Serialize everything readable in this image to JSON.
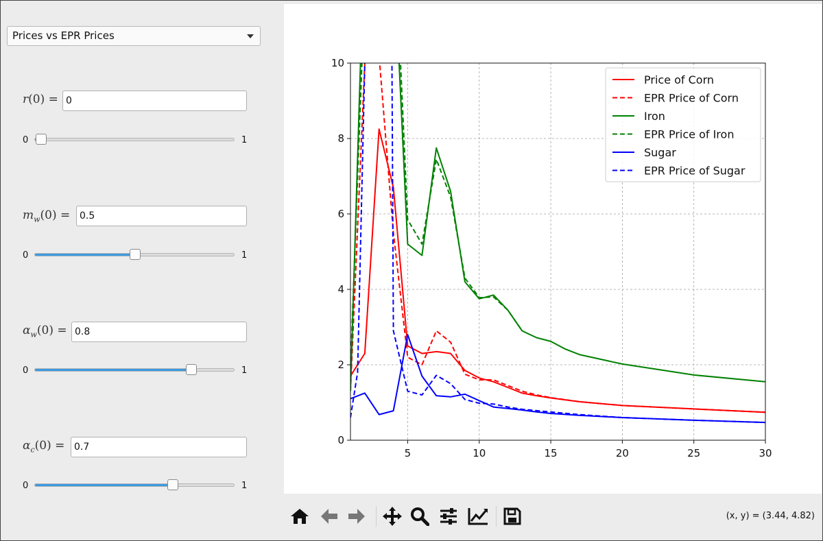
{
  "dropdown": {
    "selected": "Prices vs EPR Prices"
  },
  "params": [
    {
      "sym": "r",
      "sub": "",
      "value": "0",
      "slider_min": "0",
      "slider_max": "1",
      "fraction": 0.0
    },
    {
      "sym": "m",
      "sub": "w",
      "value": "0.5",
      "slider_min": "0",
      "slider_max": "1",
      "fraction": 0.5
    },
    {
      "sym": "α",
      "sub": "w",
      "value": "0.8",
      "slider_min": "0",
      "slider_max": "1",
      "fraction": 0.8
    },
    {
      "sym": "α",
      "sub": "c",
      "value": "0.7",
      "slider_min": "0",
      "slider_max": "1",
      "fraction": 0.7
    }
  ],
  "param_suffix": "(0) =",
  "toolbar": {
    "buttons": [
      "home-icon",
      "back-icon",
      "forward-icon",
      "pan-icon",
      "zoom-icon",
      "configure-subplots-icon",
      "edit-axis-icon",
      "save-icon"
    ]
  },
  "status": {
    "coords": "(x, y) = (3.44, 4.82)"
  },
  "chart_data": {
    "type": "line",
    "xlim": [
      1,
      30
    ],
    "ylim": [
      0,
      10
    ],
    "xticks": [
      5,
      10,
      15,
      20,
      25,
      30
    ],
    "yticks": [
      0,
      2,
      4,
      6,
      8,
      10
    ],
    "grid": true,
    "legend_position": "top-right",
    "series": [
      {
        "name": "Price of Corn",
        "color": "#ff0000",
        "dash": false,
        "x": [
          1,
          2,
          3,
          4,
          5,
          6,
          7,
          8,
          9,
          10,
          11,
          12,
          13,
          14,
          15,
          17,
          20,
          25,
          30
        ],
        "y": [
          1.7,
          2.3,
          8.25,
          6.7,
          2.5,
          2.3,
          2.35,
          2.3,
          1.85,
          1.65,
          1.55,
          1.4,
          1.25,
          1.18,
          1.12,
          1.02,
          0.92,
          0.83,
          0.74
        ]
      },
      {
        "name": "EPR Price of Corn",
        "color": "#ff0000",
        "dash": true,
        "x": [
          1,
          2,
          3,
          4,
          5,
          6,
          7,
          8,
          9,
          10,
          11,
          12,
          13,
          14,
          15,
          17,
          20,
          25,
          30
        ],
        "y": [
          1.3,
          10.0,
          10.2,
          5.5,
          2.2,
          2.0,
          2.9,
          2.6,
          1.75,
          1.6,
          1.6,
          1.45,
          1.3,
          1.2,
          1.13,
          1.02,
          0.92,
          0.83,
          0.74
        ]
      },
      {
        "name": "Iron",
        "color": "#008000",
        "dash": false,
        "x": [
          1,
          1.7,
          2,
          3,
          4,
          4.4,
          5,
          6,
          7,
          8,
          9,
          10,
          11,
          12,
          13,
          14,
          15,
          16,
          17,
          20,
          25,
          30
        ],
        "y": [
          1.3,
          10.0,
          10.2,
          10.2,
          10.2,
          10.0,
          5.2,
          4.9,
          7.75,
          6.6,
          4.2,
          3.75,
          3.85,
          3.45,
          2.9,
          2.72,
          2.62,
          2.42,
          2.27,
          2.02,
          1.73,
          1.55
        ]
      },
      {
        "name": "EPR Price of Iron",
        "color": "#008000",
        "dash": true,
        "x": [
          1,
          1.8,
          2,
          3,
          4,
          4.5,
          5,
          6,
          7,
          8,
          9,
          10,
          11,
          12,
          13
        ],
        "y": [
          1.9,
          10.0,
          10.2,
          10.2,
          10.2,
          10.0,
          5.85,
          5.2,
          7.45,
          6.45,
          4.3,
          3.78,
          3.8,
          3.45,
          2.9
        ]
      },
      {
        "name": "Sugar",
        "color": "#0000ff",
        "dash": false,
        "x": [
          1,
          2,
          3,
          4,
          5,
          6,
          7,
          8,
          9,
          10,
          11,
          12,
          13,
          14,
          15,
          17,
          20,
          25,
          30
        ],
        "y": [
          1.1,
          1.25,
          0.68,
          0.78,
          2.8,
          1.7,
          1.18,
          1.15,
          1.22,
          1.05,
          0.88,
          0.84,
          0.8,
          0.75,
          0.71,
          0.66,
          0.6,
          0.53,
          0.47
        ]
      },
      {
        "name": "EPR Price of Sugar",
        "color": "#0000ff",
        "dash": true,
        "x": [
          1,
          1.5,
          2,
          3,
          3.7,
          3.9,
          4,
          5,
          6,
          7,
          8,
          9,
          10,
          11,
          12,
          13,
          15,
          17,
          20,
          25,
          30
        ],
        "y": [
          0.6,
          1.8,
          10.0,
          10.2,
          10.2,
          10.0,
          2.9,
          1.3,
          1.2,
          1.72,
          1.5,
          1.08,
          0.98,
          0.96,
          0.88,
          0.82,
          0.75,
          0.68,
          0.6,
          0.53,
          0.47
        ]
      }
    ]
  }
}
